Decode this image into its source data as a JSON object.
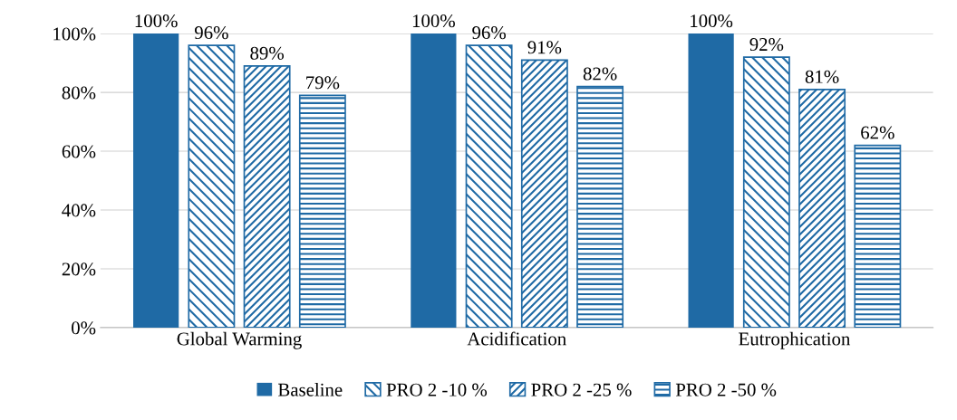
{
  "chart_data": {
    "type": "bar",
    "categories": [
      "Global Warming",
      "Acidification",
      "Eutrophication"
    ],
    "series": [
      {
        "name": "Baseline",
        "color": "#1f6aa5",
        "values": [
          100,
          100,
          100
        ],
        "value_labels": [
          "100%",
          "100%",
          "100%"
        ]
      },
      {
        "name": "PRO 2 -10 %",
        "color": "#1f6aa5",
        "values": [
          96,
          96,
          92
        ],
        "value_labels": [
          "96%",
          "96%",
          "92%"
        ]
      },
      {
        "name": "PRO 2 -25 %",
        "color": "#1f6aa5",
        "values": [
          89,
          91,
          81
        ],
        "value_labels": [
          "89%",
          "91%",
          "81%"
        ]
      },
      {
        "name": "PRO 2 -50 %",
        "color": "#1f6aa5",
        "values": [
          79,
          82,
          62
        ],
        "value_labels": [
          "79%",
          "82%",
          "62%"
        ]
      }
    ],
    "ylim": [
      0,
      100
    ],
    "yticks": [
      {
        "value": 0,
        "label": "0%"
      },
      {
        "value": 20,
        "label": "20%"
      },
      {
        "value": 40,
        "label": "40%"
      },
      {
        "value": 60,
        "label": "60%"
      },
      {
        "value": 80,
        "label": "80%"
      },
      {
        "value": 100,
        "label": "100%"
      }
    ],
    "grid": "y",
    "legend": "bottom"
  }
}
